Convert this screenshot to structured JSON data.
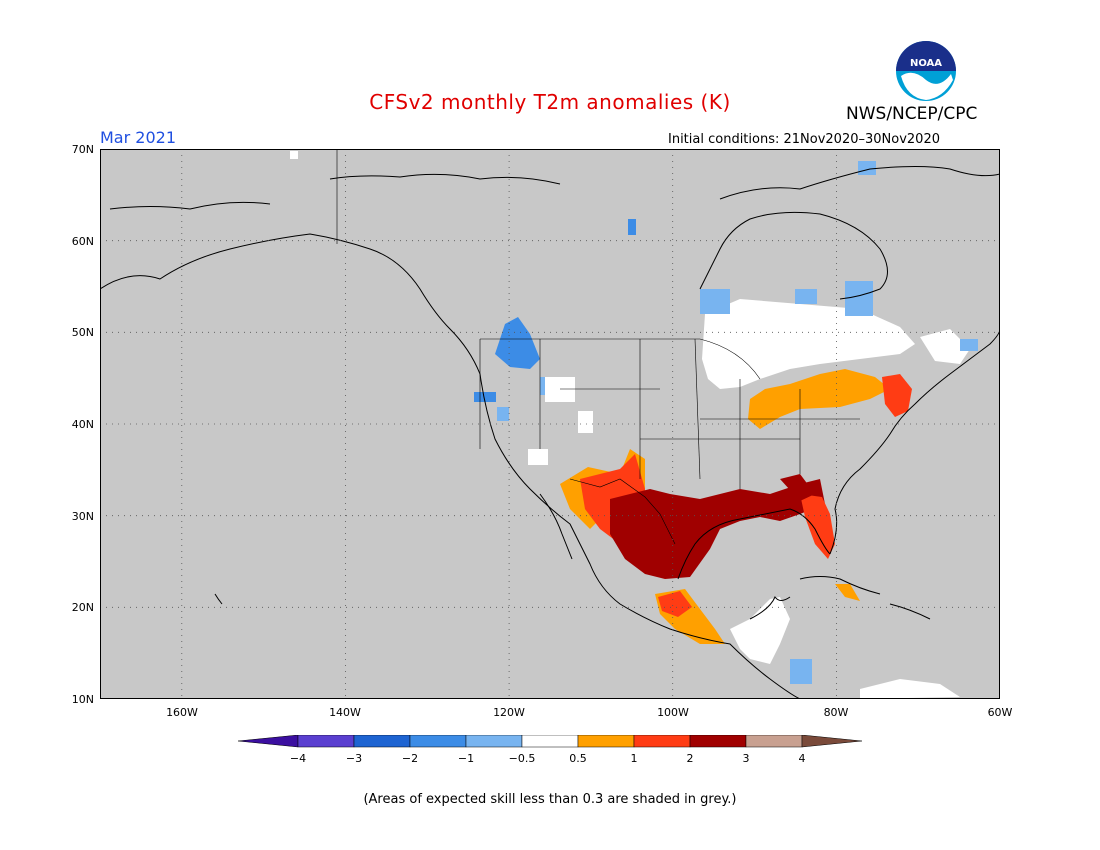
{
  "title": "CFSv2 monthly T2m anomalies (K)",
  "agency": "NWS/NCEP/CPC",
  "logo_text": "NOAA",
  "month_label": "Mar 2021",
  "initial_conditions": "Initial conditions: 21Nov2020–30Nov2020",
  "footnote": "(Areas of expected skill less than 0.3 are shaded in grey.)",
  "map": {
    "lon_range": [
      -170,
      -60
    ],
    "lat_range": [
      10,
      70
    ],
    "lat_labels": [
      "70N",
      "60N",
      "50N",
      "40N",
      "30N",
      "20N",
      "10N"
    ],
    "lon_labels": [
      "160W",
      "140W",
      "120W",
      "100W",
      "80W",
      "60W"
    ],
    "background": "#c8c8c8"
  },
  "colorbar": {
    "labels": [
      "−4",
      "−3",
      "−2",
      "−1",
      "−0.5",
      "0.5",
      "1",
      "2",
      "3",
      "4"
    ],
    "colors": [
      "#3b0fa0",
      "#5a3fd0",
      "#1e64d2",
      "#3c8ce6",
      "#78b4f0",
      "#ffffff",
      "#ffa000",
      "#ff3c14",
      "#a00000",
      "#c8a090",
      "#7a4a3a"
    ]
  },
  "colors": {
    "title": "#e00000",
    "month": "#1f4fe0"
  }
}
